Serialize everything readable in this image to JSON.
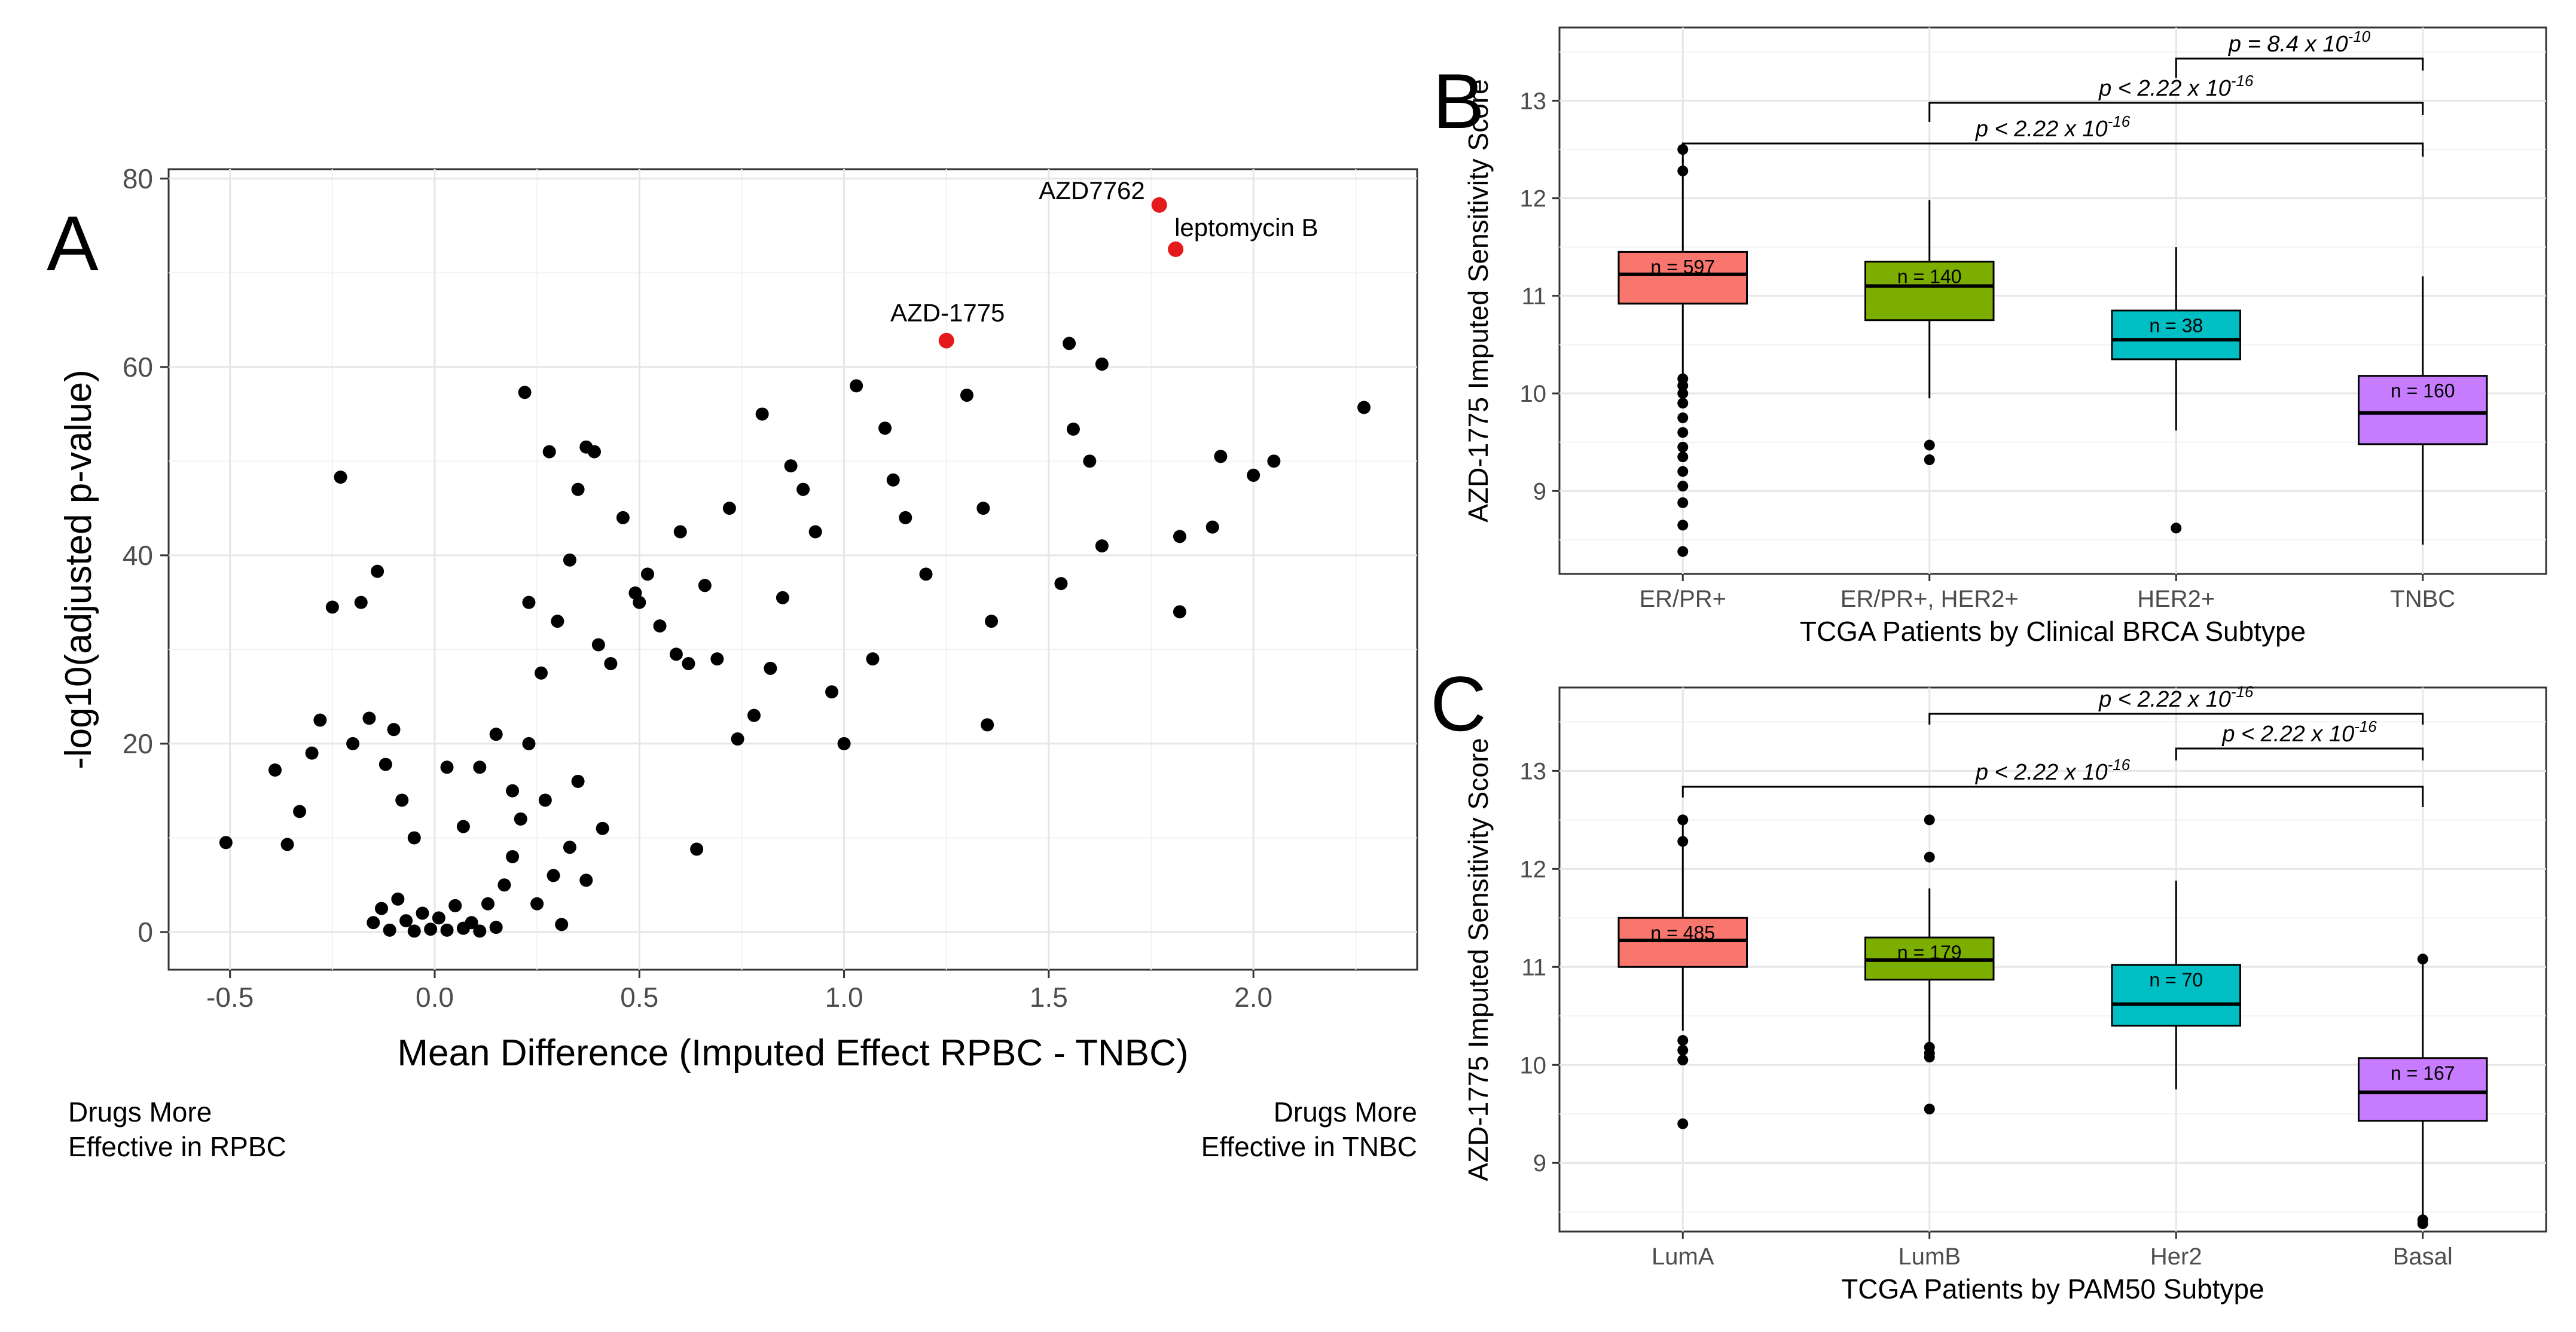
{
  "chart_data": [
    {
      "type": "scatter",
      "panel_label": "A",
      "xlabel": "Mean Difference (Imputed Effect RPBC - TNBC)",
      "ylabel": "-log10(adjusted p-value)",
      "xlim": [
        -0.65,
        2.4
      ],
      "ylim": [
        -4,
        81
      ],
      "xticks": [
        "-0.5",
        "0.0",
        "0.5",
        "1.0",
        "1.5",
        "2.0"
      ],
      "yticks": [
        "0",
        "20",
        "40",
        "60",
        "80"
      ],
      "annotations": [
        {
          "text": "Drugs More"
        },
        {
          "text": "Effective in RPBC"
        },
        {
          "text": "Drugs More"
        },
        {
          "text": "Effective in TNBC"
        }
      ],
      "highlighted": [
        {
          "name": "AZD7762",
          "x": 1.77,
          "y": 77.2
        },
        {
          "name": "leptomycin B",
          "x": 1.81,
          "y": 72.5
        },
        {
          "name": "AZD-1775",
          "x": 1.25,
          "y": 62.8
        }
      ],
      "points": [
        [
          -0.51,
          9.5
        ],
        [
          -0.39,
          17.2
        ],
        [
          -0.36,
          9.3
        ],
        [
          -0.33,
          12.8
        ],
        [
          -0.3,
          19
        ],
        [
          -0.28,
          22.5
        ],
        [
          -0.25,
          34.5
        ],
        [
          -0.23,
          48.3
        ],
        [
          -0.2,
          20
        ],
        [
          -0.18,
          35
        ],
        [
          -0.16,
          22.7
        ],
        [
          -0.14,
          38.3
        ],
        [
          -0.12,
          17.8
        ],
        [
          -0.1,
          21.5
        ],
        [
          -0.08,
          14
        ],
        [
          -0.05,
          10
        ],
        [
          0.03,
          17.5
        ],
        [
          0.07,
          11.2
        ],
        [
          0.11,
          17.5
        ],
        [
          0.15,
          21
        ],
        [
          0.19,
          15
        ],
        [
          0.22,
          57.3
        ],
        [
          0.23,
          35
        ],
        [
          0.26,
          27.5
        ],
        [
          0.28,
          51
        ],
        [
          0.3,
          33
        ],
        [
          0.33,
          39.5
        ],
        [
          0.35,
          47
        ],
        [
          0.37,
          51.5
        ],
        [
          0.39,
          51
        ],
        [
          0.4,
          30.5
        ],
        [
          0.43,
          28.5
        ],
        [
          0.46,
          44
        ],
        [
          0.49,
          36
        ],
        [
          0.5,
          35
        ],
        [
          0.52,
          38
        ],
        [
          0.55,
          32.5
        ],
        [
          0.59,
          29.5
        ],
        [
          0.6,
          42.5
        ],
        [
          0.62,
          28.5
        ],
        [
          0.64,
          8.8
        ],
        [
          0.66,
          36.8
        ],
        [
          0.69,
          29
        ],
        [
          0.72,
          45
        ],
        [
          0.74,
          20.5
        ],
        [
          0.78,
          23
        ],
        [
          0.8,
          55
        ],
        [
          0.82,
          28
        ],
        [
          0.85,
          35.5
        ],
        [
          0.87,
          49.5
        ],
        [
          0.9,
          47
        ],
        [
          0.93,
          42.5
        ],
        [
          0.97,
          25.5
        ],
        [
          1.0,
          20
        ],
        [
          1.03,
          58
        ],
        [
          1.07,
          29
        ],
        [
          1.1,
          53.5
        ],
        [
          1.12,
          48
        ],
        [
          1.15,
          44
        ],
        [
          1.2,
          38
        ],
        [
          1.3,
          57
        ],
        [
          1.34,
          45
        ],
        [
          1.35,
          22
        ],
        [
          1.36,
          33
        ],
        [
          1.53,
          37
        ],
        [
          1.55,
          62.5
        ],
        [
          1.56,
          53.4
        ],
        [
          1.6,
          50
        ],
        [
          1.63,
          60.3
        ],
        [
          1.63,
          41
        ],
        [
          1.82,
          42
        ],
        [
          1.82,
          34
        ],
        [
          1.9,
          43
        ],
        [
          1.92,
          50.5
        ],
        [
          2.0,
          48.5
        ],
        [
          2.05,
          50
        ],
        [
          2.27,
          55.7
        ],
        [
          -0.15,
          1
        ],
        [
          -0.13,
          2.5
        ],
        [
          -0.11,
          0.2
        ],
        [
          -0.09,
          3.5
        ],
        [
          -0.07,
          1.2
        ],
        [
          -0.05,
          0.1
        ],
        [
          -0.03,
          2
        ],
        [
          -0.01,
          0.3
        ],
        [
          0.01,
          1.5
        ],
        [
          0.03,
          0.2
        ],
        [
          0.05,
          2.8
        ],
        [
          0.07,
          0.4
        ],
        [
          0.09,
          1
        ],
        [
          0.11,
          0.1
        ],
        [
          0.13,
          3
        ],
        [
          0.15,
          0.5
        ],
        [
          0.17,
          5
        ],
        [
          0.19,
          8
        ],
        [
          0.21,
          12
        ],
        [
          0.23,
          20
        ],
        [
          0.25,
          3
        ],
        [
          0.27,
          14
        ],
        [
          0.29,
          6
        ],
        [
          0.31,
          0.8
        ],
        [
          0.33,
          9
        ],
        [
          0.35,
          16
        ],
        [
          0.37,
          5.5
        ],
        [
          0.41,
          11
        ]
      ]
    },
    {
      "type": "box",
      "panel_label": "B",
      "xlabel": "TCGA Patients by Clinical BRCA Subtype",
      "ylabel": "AZD-1775 Imputed Sensitivity Score",
      "ylim": [
        8.15,
        13.75
      ],
      "yticks": [
        "9",
        "10",
        "11",
        "12",
        "13"
      ],
      "categories": [
        "ER/PR+",
        "ER/PR+, HER2+",
        "HER2+",
        "TNBC"
      ],
      "boxes": [
        {
          "q1": 10.92,
          "median": 11.22,
          "q3": 11.45,
          "whislo": 9.9,
          "whishi": 12.4,
          "color": "#f8766d",
          "n": "n = 597",
          "outliers": [
            12.5,
            12.28,
            10.15,
            10.08,
            10.0,
            9.9,
            9.75,
            9.6,
            9.45,
            9.35,
            9.2,
            9.05,
            8.88,
            8.65,
            8.38
          ]
        },
        {
          "q1": 10.75,
          "median": 11.1,
          "q3": 11.35,
          "whislo": 9.95,
          "whishi": 11.98,
          "color": "#7cae00",
          "n": "n = 140",
          "outliers": [
            9.47,
            9.32
          ]
        },
        {
          "q1": 10.35,
          "median": 10.55,
          "q3": 10.85,
          "whislo": 9.62,
          "whishi": 11.5,
          "color": "#00bfc4",
          "n": "n = 38",
          "outliers": [
            8.62
          ]
        },
        {
          "q1": 9.48,
          "median": 9.8,
          "q3": 10.18,
          "whislo": 8.45,
          "whishi": 11.2,
          "color": "#c77cff",
          "n": "n = 160",
          "outliers": []
        }
      ],
      "brackets": [
        {
          "from": 3,
          "to": 4,
          "text": "p = 8.4 x 10",
          "exp": "-10"
        },
        {
          "from": 2,
          "to": 4,
          "text": "p < 2.22 x 10",
          "exp": "-16"
        },
        {
          "from": 1,
          "to": 4,
          "text": "p < 2.22 x 10",
          "exp": "-16"
        }
      ]
    },
    {
      "type": "box",
      "panel_label": "C",
      "xlabel": "TCGA Patients by PAM50 Subtype",
      "ylabel": "AZD-1775 Imputed Sensitivity Score",
      "ylim": [
        8.3,
        13.85
      ],
      "yticks": [
        "9",
        "10",
        "11",
        "12",
        "13"
      ],
      "categories": [
        "LumA",
        "LumB",
        "Her2",
        "Basal"
      ],
      "boxes": [
        {
          "q1": 11.0,
          "median": 11.27,
          "q3": 11.5,
          "whislo": 10.35,
          "whishi": 12.45,
          "color": "#f8766d",
          "n": "n = 485",
          "outliers": [
            12.5,
            12.28,
            10.25,
            10.15,
            10.05,
            9.4
          ]
        },
        {
          "q1": 10.87,
          "median": 11.07,
          "q3": 11.3,
          "whislo": 10.2,
          "whishi": 11.8,
          "color": "#7cae00",
          "n": "n = 179",
          "outliers": [
            12.5,
            12.12,
            10.18,
            10.12,
            10.08,
            9.55
          ]
        },
        {
          "q1": 10.4,
          "median": 10.62,
          "q3": 11.02,
          "whislo": 9.75,
          "whishi": 11.88,
          "color": "#00bfc4",
          "n": "n = 70",
          "outliers": []
        },
        {
          "q1": 9.43,
          "median": 9.72,
          "q3": 10.07,
          "whislo": 8.45,
          "whishi": 11.05,
          "color": "#c77cff",
          "n": "n = 167",
          "outliers": [
            11.08,
            8.42,
            8.38
          ]
        }
      ],
      "brackets": [
        {
          "from": 2,
          "to": 4,
          "text": "p < 2.22 x 10",
          "exp": "-16"
        },
        {
          "from": 3,
          "to": 4,
          "text": "p < 2.22 x 10",
          "exp": "-16"
        },
        {
          "from": 1,
          "to": 4,
          "text": "p < 2.22 x 10",
          "exp": "-16"
        }
      ]
    }
  ]
}
